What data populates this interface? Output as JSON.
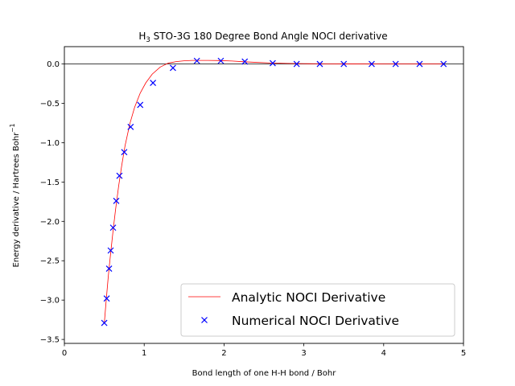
{
  "chart_data": {
    "type": "line",
    "title_prefix": "H",
    "title_sub": "3",
    "title_rest": " STO-3G 180 Degree Bond Angle NOCI derivative",
    "xlabel": "Bond length of one H-H bond / Bohr",
    "ylabel_main": "Energy derivative / Hartrees Bohr",
    "ylabel_sup": "−1",
    "xlim": [
      0,
      5
    ],
    "ylim": [
      -3.55,
      0.22
    ],
    "x_ticks": [
      {
        "value": 0,
        "label": "0"
      },
      {
        "value": 1,
        "label": "1"
      },
      {
        "value": 2,
        "label": "2"
      },
      {
        "value": 3,
        "label": "3"
      },
      {
        "value": 4,
        "label": "4"
      },
      {
        "value": 5,
        "label": "5"
      }
    ],
    "y_ticks": [
      {
        "value": 0.0,
        "label": "0.0"
      },
      {
        "value": -0.5,
        "label": "−0.5"
      },
      {
        "value": -1.0,
        "label": "−1.0"
      },
      {
        "value": -1.5,
        "label": "−1.5"
      },
      {
        "value": -2.0,
        "label": "−2.0"
      },
      {
        "value": -2.5,
        "label": "−2.5"
      },
      {
        "value": -3.0,
        "label": "−3.0"
      },
      {
        "value": -3.5,
        "label": "−3.5"
      }
    ],
    "grid": false,
    "zero_line": true,
    "legend_position": "lower-right",
    "series": [
      {
        "name": "Analytic NOCI Derivative",
        "kind": "line",
        "color": "#ff0000",
        "x": [
          0.5,
          0.52,
          0.55,
          0.58,
          0.61,
          0.64,
          0.68,
          0.72,
          0.76,
          0.82,
          0.88,
          0.95,
          1.02,
          1.1,
          1.2,
          1.3,
          1.4,
          1.5,
          1.6,
          1.7,
          1.8,
          1.95,
          2.1,
          2.25,
          2.4,
          2.6,
          2.8,
          3.0,
          3.3,
          3.6,
          4.0,
          4.4,
          4.75
        ],
        "y": [
          -3.3,
          -3.05,
          -2.7,
          -2.4,
          -2.12,
          -1.86,
          -1.55,
          -1.28,
          -1.04,
          -0.76,
          -0.55,
          -0.37,
          -0.24,
          -0.13,
          -0.04,
          0.01,
          0.03,
          0.04,
          0.045,
          0.045,
          0.045,
          0.043,
          0.037,
          0.028,
          0.02,
          0.012,
          0.007,
          0.004,
          0.002,
          0.001,
          0.0,
          0.0,
          0.0
        ]
      },
      {
        "name": "Numerical NOCI Derivative",
        "kind": "scatter",
        "marker": "x",
        "color": "#0000ff",
        "x": [
          0.5,
          0.53,
          0.56,
          0.58,
          0.61,
          0.65,
          0.69,
          0.75,
          0.83,
          0.95,
          1.11,
          1.36,
          1.66,
          1.96,
          2.26,
          2.61,
          2.91,
          3.2,
          3.5,
          3.85,
          4.15,
          4.45,
          4.75
        ],
        "y": [
          -3.29,
          -2.98,
          -2.6,
          -2.37,
          -2.08,
          -1.74,
          -1.42,
          -1.12,
          -0.8,
          -0.52,
          -0.24,
          -0.05,
          0.04,
          0.04,
          0.03,
          0.01,
          0.0,
          0.0,
          0.0,
          0.0,
          0.0,
          0.0,
          0.0
        ]
      }
    ]
  }
}
